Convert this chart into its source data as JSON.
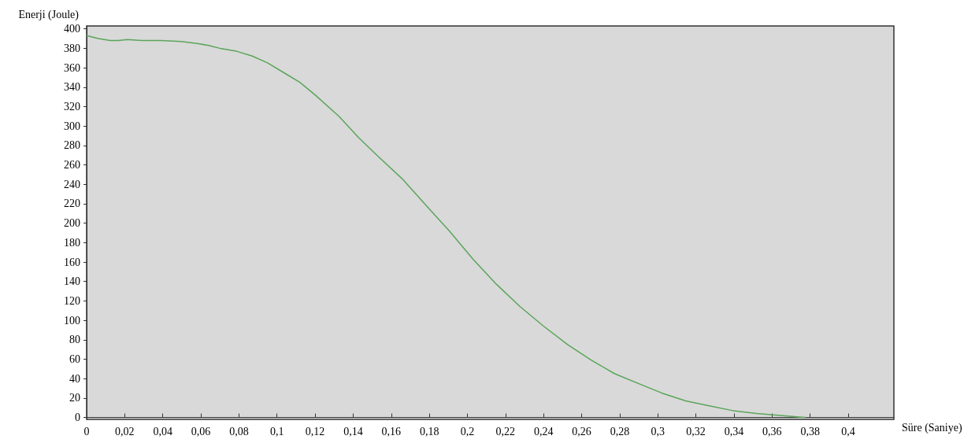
{
  "chart_data": {
    "type": "line",
    "xlabel": "Süre (Saniye)",
    "ylabel": "Enerji (Joule)",
    "x": [
      0,
      0.0062,
      0.0124,
      0.0166,
      0.0215,
      0.029,
      0.039,
      0.0497,
      0.058,
      0.064,
      0.07,
      0.0787,
      0.087,
      0.095,
      0.1035,
      0.112,
      0.12,
      0.1325,
      0.1429,
      0.153,
      0.1656,
      0.178,
      0.1905,
      0.2029,
      0.2153,
      0.2277,
      0.24,
      0.2526,
      0.265,
      0.2774,
      0.2898,
      0.3023,
      0.3147,
      0.327,
      0.3395,
      0.352,
      0.3644,
      0.3776
    ],
    "series": [
      {
        "color": "#5aa55a",
        "values": [
          393,
          390,
          388,
          388,
          389,
          388,
          388,
          387,
          385,
          383,
          380,
          377,
          372,
          365,
          355,
          345,
          332,
          310,
          288,
          269,
          246,
          219,
          192,
          163,
          137,
          114,
          94,
          75,
          59,
          45,
          35,
          25,
          17,
          12,
          7,
          4,
          2,
          0
        ]
      }
    ],
    "xlim": [
      0,
      0.424
    ],
    "ylim": [
      -2,
      403
    ],
    "xticks": [
      0,
      {
        "value": 0.02,
        "label": "0,02"
      },
      {
        "value": 0.04,
        "label": "0,04"
      },
      {
        "value": 0.06,
        "label": "0,06"
      },
      {
        "value": 0.08,
        "label": "0,08"
      },
      {
        "value": 0.1,
        "label": "0,1"
      },
      {
        "value": 0.12,
        "label": "0,12"
      },
      {
        "value": 0.14,
        "label": "0,14"
      },
      {
        "value": 0.16,
        "label": "0,16"
      },
      {
        "value": 0.18,
        "label": "0,18"
      },
      {
        "value": 0.2,
        "label": "0,2"
      },
      {
        "value": 0.22,
        "label": "0,22"
      },
      {
        "value": 0.24,
        "label": "0,24"
      },
      {
        "value": 0.26,
        "label": "0,26"
      },
      {
        "value": 0.28,
        "label": "0,28"
      },
      {
        "value": 0.3,
        "label": "0,3"
      },
      {
        "value": 0.32,
        "label": "0,32"
      },
      {
        "value": 0.34,
        "label": "0,34"
      },
      {
        "value": 0.36,
        "label": "0,36"
      },
      {
        "value": 0.38,
        "label": "0,38"
      },
      {
        "value": 0.4,
        "label": "0,4"
      }
    ],
    "yticks": [
      0,
      20,
      40,
      60,
      80,
      100,
      120,
      140,
      160,
      180,
      200,
      220,
      240,
      260,
      280,
      300,
      320,
      340,
      360,
      380,
      400
    ],
    "marker": "none",
    "line_style": "solid"
  }
}
